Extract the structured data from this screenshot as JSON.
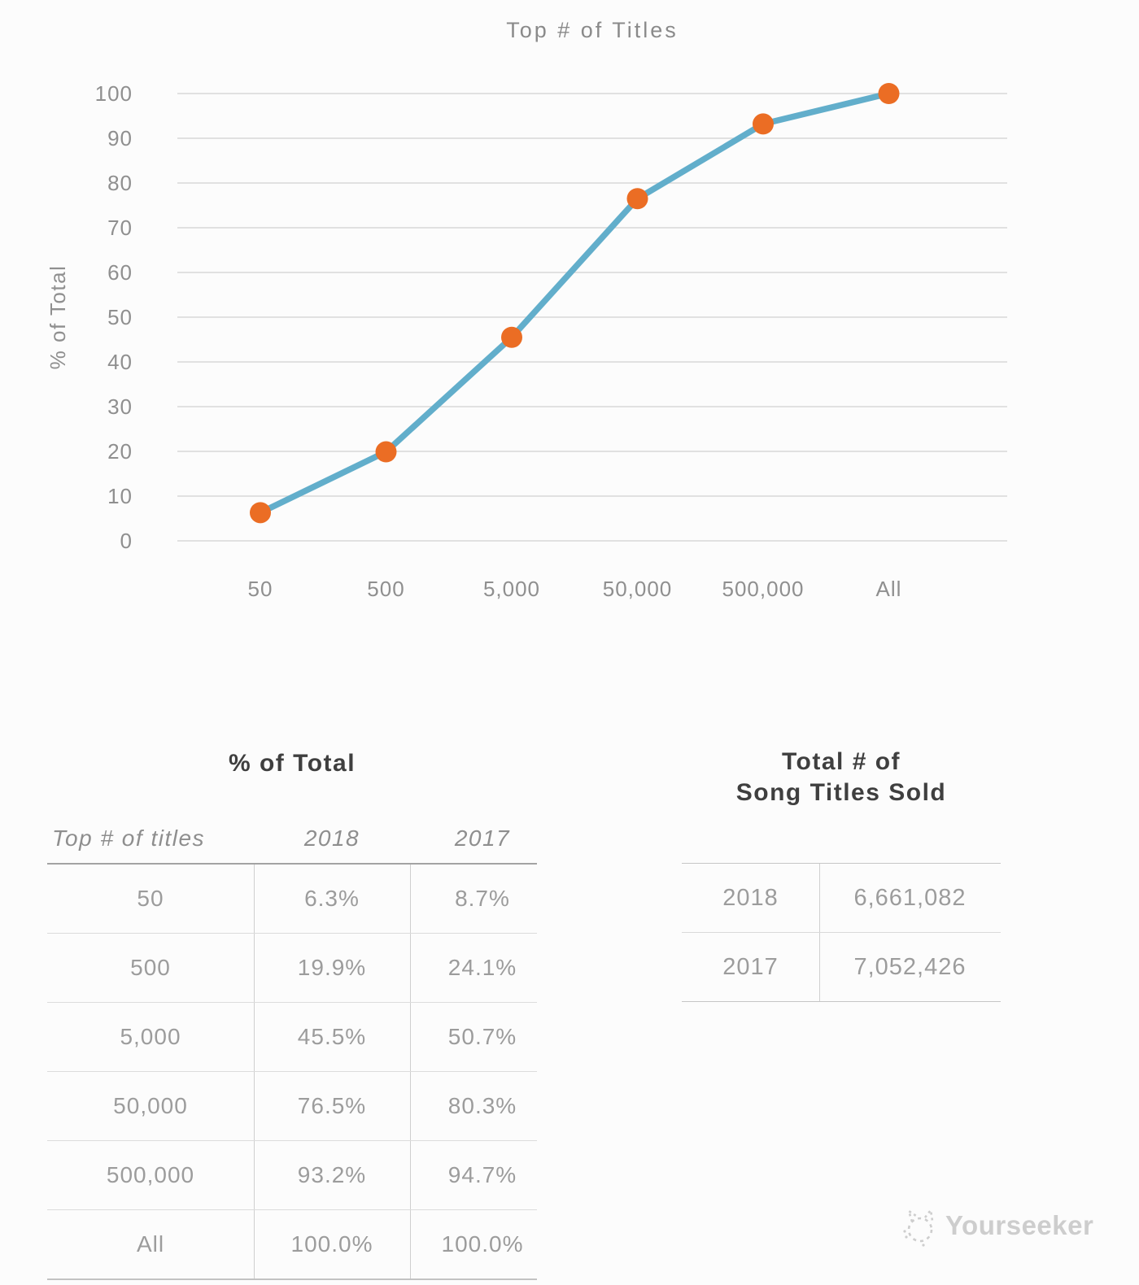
{
  "chart_data": {
    "type": "line",
    "title": "Top # of Titles",
    "xlabel": "",
    "ylabel": "% of Total",
    "categories": [
      "50",
      "500",
      "5,000",
      "50,000",
      "500,000",
      "All"
    ],
    "series": [
      {
        "name": "2018",
        "values": [
          6.3,
          19.9,
          45.5,
          76.5,
          93.2,
          100.0
        ]
      }
    ],
    "ylim": [
      0,
      100
    ],
    "ytick_step": 10,
    "grid": true,
    "legend": "none",
    "line_color": "#62AECB",
    "point_color": "#EB6D24",
    "grid_color": "#D8D8D8",
    "axis_text_color": "#8F8F8F",
    "title_color": "#8A8A8A"
  },
  "left_table": {
    "title": "% of Total",
    "columns": [
      "Top # of titles",
      "2018",
      "2017"
    ],
    "rows": [
      {
        "label": "50",
        "y2018": "6.3%",
        "y2017": "8.7%"
      },
      {
        "label": "500",
        "y2018": "19.9%",
        "y2017": "24.1%"
      },
      {
        "label": "5,000",
        "y2018": "45.5%",
        "y2017": "50.7%"
      },
      {
        "label": "50,000",
        "y2018": "76.5%",
        "y2017": "80.3%"
      },
      {
        "label": "500,000",
        "y2018": "93.2%",
        "y2017": "94.7%"
      },
      {
        "label": "All",
        "y2018": "100.0%",
        "y2017": "100.0%"
      }
    ]
  },
  "right_table": {
    "title_line1": "Total # of",
    "title_line2": "Song Titles Sold",
    "rows": [
      {
        "label": "2018",
        "value": "6,661,082"
      },
      {
        "label": "2017",
        "value": "7,052,426"
      }
    ]
  },
  "watermark": {
    "text": "Yourseeker"
  }
}
